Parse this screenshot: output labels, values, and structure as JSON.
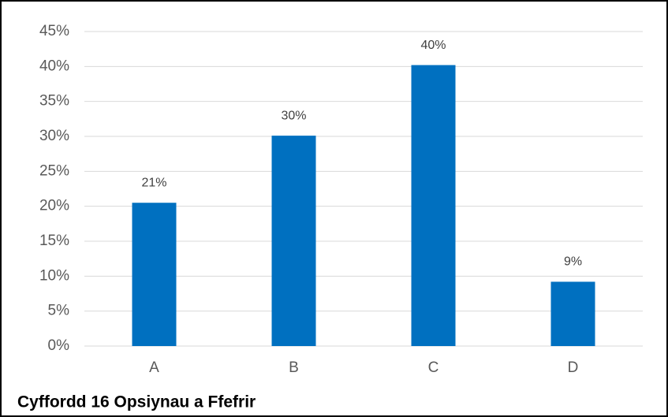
{
  "chart_data": {
    "type": "bar",
    "title": "Cyffordd 16 Opsiynau a Ffefrir",
    "categories": [
      "A",
      "B",
      "C",
      "D"
    ],
    "values": [
      20.5,
      30.1,
      40.2,
      9.2
    ],
    "value_labels": [
      "21%",
      "30%",
      "40%",
      "9%"
    ],
    "color": "#0070c0",
    "ylim": [
      0,
      45
    ],
    "yticks": [
      {
        "value": 0,
        "label": "0%"
      },
      {
        "value": 5,
        "label": "5%"
      },
      {
        "value": 10,
        "label": "10%"
      },
      {
        "value": 15,
        "label": "15%"
      },
      {
        "value": 20,
        "label": "20%"
      },
      {
        "value": 25,
        "label": "25%"
      },
      {
        "value": 30,
        "label": "30%"
      },
      {
        "value": 35,
        "label": "35%"
      },
      {
        "value": 40,
        "label": "40%"
      },
      {
        "value": 45,
        "label": "45%"
      }
    ],
    "grid": true
  }
}
